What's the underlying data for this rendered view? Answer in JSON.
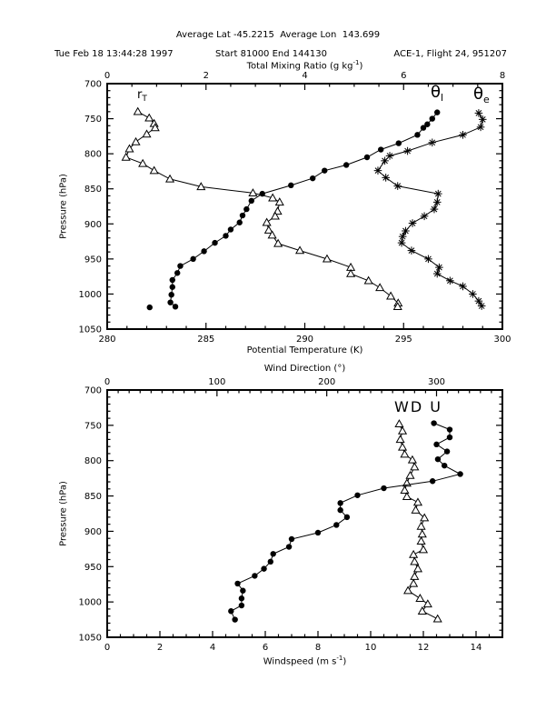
{
  "header": {
    "line1": "Average Lat -45.2215  Average Lon  143.699",
    "left": "Tue Feb 18 13:44:28 1997",
    "center": "Start 81000 End 144130",
    "right": "ACE-1, Flight 24, 951207"
  },
  "chart_data": [
    {
      "id": "top",
      "type": "line",
      "title": "",
      "y_axis": {
        "label": "Pressure (hPa)",
        "min": 700,
        "max": 1050,
        "major": 50,
        "minor": 10,
        "tick_labels": [
          "700",
          "750",
          "800",
          "850",
          "900",
          "950",
          "1000",
          "1050"
        ]
      },
      "x_bottom": {
        "label": "Potential Temperature (K)",
        "min": 280,
        "max": 300,
        "major": 5,
        "minor": 1,
        "tick_labels": [
          "280",
          "285",
          "290",
          "295",
          "300"
        ]
      },
      "x_top": {
        "label_pre": "Total Mixing Ratio (g kg",
        "label_sup": "-1",
        "label_post": ")",
        "min": 0,
        "max": 8,
        "major": 2,
        "minor": 0.5,
        "tick_labels": [
          "0",
          "2",
          "4",
          "6",
          "8"
        ]
      },
      "annotations": {
        "r_label": "r",
        "r_sub": "T",
        "theta_l": "θ",
        "theta_l_sub": "l",
        "theta_e": "θ",
        "theta_e_sub": "e"
      },
      "series": [
        {
          "name": "total-mixing-ratio-rT",
          "axis": "top",
          "marker": "triangle",
          "pressure": [
            740,
            749,
            757,
            763,
            772,
            783,
            793,
            805,
            814,
            824,
            836,
            847,
            856,
            863,
            869,
            882,
            889,
            898,
            909,
            916,
            928,
            938,
            950,
            962,
            971,
            981,
            991,
            1003,
            1013,
            1018
          ],
          "values": [
            0.62,
            0.85,
            0.95,
            0.97,
            0.8,
            0.58,
            0.45,
            0.38,
            0.72,
            0.95,
            1.27,
            1.9,
            2.95,
            3.35,
            3.49,
            3.45,
            3.4,
            3.23,
            3.27,
            3.34,
            3.46,
            3.9,
            4.45,
            4.93,
            4.93,
            5.29,
            5.52,
            5.74,
            5.89,
            5.88
          ]
        },
        {
          "name": "theta-l",
          "axis": "bottom",
          "marker": "circle",
          "pressure": [
            741,
            750,
            758,
            763,
            773,
            785,
            794,
            805,
            816,
            824,
            835,
            845,
            857,
            867,
            879,
            888,
            898,
            908,
            917,
            927,
            939,
            950,
            960,
            970,
            980,
            990,
            1001,
            1012,
            1018
          ],
          "values": [
            296.7,
            296.45,
            296.2,
            296.0,
            295.7,
            294.75,
            293.85,
            293.15,
            292.1,
            291.0,
            290.4,
            289.3,
            287.85,
            287.3,
            287.05,
            286.85,
            286.7,
            286.25,
            286.0,
            285.45,
            284.9,
            284.35,
            283.7,
            283.55,
            283.3,
            283.3,
            283.25,
            283.2,
            283.45
          ]
        },
        {
          "name": "theta-l-outlier",
          "axis": "bottom",
          "marker": "circle",
          "line": false,
          "pressure": [
            1019
          ],
          "values": [
            282.15
          ]
        },
        {
          "name": "theta-e",
          "axis": "bottom",
          "marker": "asterisk",
          "pressure": [
            742,
            751,
            762,
            773,
            784,
            796,
            803,
            810,
            824,
            834,
            846,
            857,
            869,
            879,
            889,
            899,
            910,
            918,
            927,
            938,
            950,
            962,
            971,
            981,
            989,
            1000,
            1010,
            1017
          ],
          "values": [
            298.8,
            299.0,
            298.9,
            298.0,
            296.45,
            295.2,
            294.3,
            294.05,
            293.7,
            294.1,
            294.7,
            296.75,
            296.7,
            296.55,
            296.05,
            295.45,
            295.1,
            294.95,
            294.9,
            295.4,
            296.25,
            296.8,
            296.7,
            297.35,
            298.0,
            298.5,
            298.8,
            298.95
          ]
        }
      ]
    },
    {
      "id": "bottom",
      "type": "line",
      "title": "",
      "y_axis": {
        "label": "Pressure (hPa)",
        "min": 700,
        "max": 1050,
        "major": 50,
        "minor": 10,
        "tick_labels": [
          "700",
          "750",
          "800",
          "850",
          "900",
          "950",
          "1000",
          "1050"
        ]
      },
      "x_bottom": {
        "label_pre": "Windspeed (m s",
        "label_sup": "-1",
        "label_post": ")",
        "min": 0,
        "max": 15,
        "major": 2,
        "minor": 0.5,
        "tick_labels": [
          "0",
          "2",
          "4",
          "6",
          "8",
          "10",
          "12",
          "14"
        ]
      },
      "x_top": {
        "label": "Wind Direction (°)",
        "min": 0,
        "max": 360,
        "major": 100,
        "minor": 10,
        "tick_labels": [
          "0",
          "100",
          "200",
          "300"
        ]
      },
      "annotations": {
        "wind_labels": "WD U"
      },
      "series": [
        {
          "name": "wind-direction-WD",
          "axis": "top",
          "marker": "triangle",
          "pressure": [
            748,
            758,
            770,
            781,
            791,
            799,
            809,
            821,
            832,
            842,
            851,
            859,
            870,
            881,
            893,
            904,
            914,
            926,
            933,
            943,
            953,
            964,
            974,
            984,
            995,
            1003,
            1013,
            1024
          ],
          "values": [
            266,
            269,
            267,
            269,
            271,
            278,
            280,
            276,
            273,
            271,
            273,
            283,
            281,
            289,
            286,
            287,
            286,
            288,
            279,
            280,
            283,
            280,
            279,
            274,
            285,
            292,
            287,
            301
          ]
        },
        {
          "name": "windspeed-U",
          "axis": "bottom",
          "marker": "circle",
          "pressure": [
            747,
            756,
            767,
            777,
            787,
            798,
            807,
            819,
            829,
            839,
            849,
            860,
            870,
            880,
            891,
            902,
            911,
            922,
            932,
            943,
            953,
            963,
            974,
            984,
            995,
            1005,
            1013,
            1025
          ],
          "values": [
            12.4,
            13.0,
            13.0,
            12.5,
            12.9,
            12.55,
            12.8,
            13.4,
            12.35,
            10.5,
            9.5,
            8.85,
            8.85,
            9.1,
            8.7,
            8.0,
            7.0,
            6.9,
            6.3,
            6.2,
            5.95,
            5.6,
            4.95,
            5.15,
            5.1,
            5.1,
            4.7,
            4.85
          ]
        }
      ]
    }
  ]
}
